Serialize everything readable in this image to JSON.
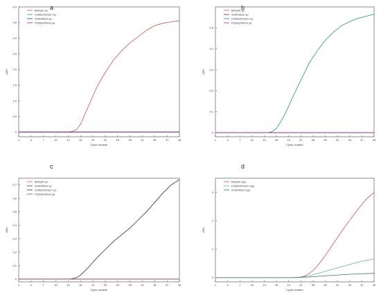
{
  "chart_data": [
    {
      "type": "line",
      "panel_label": "a",
      "xlabel": "Cycle number",
      "ylabel": "ΔRn",
      "x_ticks": [
        "1",
        "4",
        "7",
        "10",
        "13",
        "16",
        "19",
        "22",
        "25",
        "28",
        "31",
        "34",
        "37",
        "40"
      ],
      "y_ticks": [
        "0",
        "0.5",
        "1.0",
        "1.5",
        "2.0",
        "2.5",
        "3.0",
        "3.5",
        "4.0"
      ],
      "xlim": [
        1,
        40
      ],
      "ylim": [
        -0.15,
        4.0
      ],
      "legend_position": "top-left",
      "series": [
        {
          "name": "Botrytis sp.",
          "color": "#d9534f",
          "x": [
            1,
            4,
            7,
            10,
            13,
            14,
            15,
            16,
            17,
            18,
            19,
            20,
            22,
            24,
            26,
            28,
            30,
            32,
            34,
            36,
            38,
            40
          ],
          "y": [
            0,
            0,
            0,
            0,
            0,
            0.02,
            0.08,
            0.25,
            0.55,
            0.85,
            1.15,
            1.45,
            1.9,
            2.3,
            2.6,
            2.85,
            3.05,
            3.25,
            3.4,
            3.48,
            3.52,
            3.56
          ]
        },
        {
          "name": "Colletotrichum sp.",
          "color": "#1a9a6b",
          "x": [
            1,
            10,
            20,
            30,
            40
          ],
          "y": [
            0,
            0,
            0,
            0,
            0
          ]
        },
        {
          "name": "Verticillium sp.",
          "color": "#2a2a7a",
          "x": [
            1,
            10,
            20,
            30,
            40
          ],
          "y": [
            0,
            0,
            0,
            0,
            0
          ]
        },
        {
          "name": "Phytophthora sp.",
          "color": "#9b2d9b",
          "x": [
            1,
            10,
            20,
            30,
            40
          ],
          "y": [
            0,
            0,
            0,
            0,
            0
          ]
        }
      ]
    },
    {
      "type": "line",
      "panel_label": "b",
      "xlabel": "Cycle number",
      "ylabel": "ΔRn",
      "x_ticks": [
        "1",
        "4",
        "7",
        "10",
        "13",
        "16",
        "19",
        "22",
        "25",
        "28",
        "31",
        "34",
        "37",
        "40"
      ],
      "y_ticks": [
        "0",
        "0.1",
        "0.2",
        "0.3",
        "0.4",
        "0.5"
      ],
      "xlim": [
        1,
        40
      ],
      "ylim": [
        -0.02,
        0.6
      ],
      "legend_position": "top-left",
      "series": [
        {
          "name": "Botrytis sp.",
          "color": "#d9534f",
          "x": [
            1,
            10,
            20,
            30,
            40
          ],
          "y": [
            0,
            0,
            0,
            0,
            0
          ]
        },
        {
          "name": "Verticillium sp.",
          "color": "#2a2a7a",
          "x": [
            1,
            10,
            20,
            30,
            40
          ],
          "y": [
            0,
            0,
            0,
            0,
            0
          ]
        },
        {
          "name": "Colletotrichum sp.",
          "color": "#1a9a6b",
          "x": [
            1,
            10,
            14,
            15,
            16,
            17,
            18,
            19,
            20,
            21,
            22,
            24,
            26,
            28,
            30,
            32,
            34,
            36,
            38,
            40
          ],
          "y": [
            0,
            0,
            0,
            0.005,
            0.02,
            0.05,
            0.085,
            0.125,
            0.17,
            0.21,
            0.25,
            0.33,
            0.39,
            0.44,
            0.48,
            0.51,
            0.53,
            0.545,
            0.555,
            0.565
          ]
        },
        {
          "name": "Phytophthora sp.",
          "color": "#9b2d9b",
          "x": [
            1,
            10,
            20,
            30,
            40
          ],
          "y": [
            0,
            0,
            0,
            0,
            0
          ]
        }
      ]
    },
    {
      "type": "line",
      "panel_label": "c",
      "xlabel": "Cycle number",
      "ylabel": "ΔRn",
      "x_ticks": [
        "1",
        "4",
        "7",
        "10",
        "13",
        "16",
        "19",
        "22",
        "25",
        "28",
        "31",
        "34",
        "37",
        "40"
      ],
      "y_ticks": [
        "0",
        "0.1",
        "0.2",
        "0.3",
        "0.4",
        "0.5",
        "0.6",
        "0.7"
      ],
      "xlim": [
        1,
        40
      ],
      "ylim": [
        -0.02,
        0.75
      ],
      "legend_position": "top-left",
      "series": [
        {
          "name": "Botrytis sp.",
          "color": "#d9534f",
          "x": [
            1,
            10,
            20,
            30,
            40
          ],
          "y": [
            0,
            0,
            0,
            0,
            0
          ]
        },
        {
          "name": "Verticillium sp.",
          "color": "#2a2a7a",
          "x": [
            1,
            10,
            20,
            30,
            40
          ],
          "y": [
            0,
            0,
            0,
            0,
            0
          ]
        },
        {
          "name": "Colletotrichum sp.",
          "color": "#333333",
          "x": [
            1,
            10,
            13,
            14,
            15,
            16,
            17,
            18,
            20,
            22,
            24,
            26,
            28,
            30,
            32,
            34,
            36,
            38,
            40
          ],
          "y": [
            0,
            0,
            0,
            0.003,
            0.01,
            0.03,
            0.06,
            0.09,
            0.16,
            0.22,
            0.28,
            0.33,
            0.38,
            0.44,
            0.5,
            0.57,
            0.64,
            0.7,
            0.74
          ]
        },
        {
          "name": "Phytophthora sp.",
          "color": "#9b2d9b",
          "x": [
            1,
            10,
            20,
            30,
            40
          ],
          "y": [
            0,
            0,
            0,
            0,
            0
          ]
        }
      ]
    },
    {
      "type": "line",
      "panel_label": "d",
      "xlabel": "Cycle number",
      "ylabel": "ΔRn",
      "x_ticks": [
        "1",
        "4",
        "7",
        "10",
        "13",
        "16",
        "19",
        "22",
        "25",
        "28",
        "31",
        "34",
        "37",
        "40"
      ],
      "y_ticks": [
        "0",
        "1",
        "2",
        "3"
      ],
      "xlim": [
        1,
        40
      ],
      "ylim": [
        -0.15,
        3.5
      ],
      "legend_position": "top-left",
      "series": [
        {
          "name": "Botrytis spp.",
          "color": "#d9534f",
          "x": [
            1,
            10,
            20,
            22,
            23,
            24,
            25,
            26,
            27,
            28,
            29,
            30,
            32,
            34,
            36,
            38,
            40
          ],
          "y": [
            0,
            0,
            0,
            0.02,
            0.06,
            0.14,
            0.25,
            0.4,
            0.58,
            0.78,
            0.98,
            1.2,
            1.62,
            2.02,
            2.4,
            2.75,
            3.0
          ]
        },
        {
          "name": "Colletotrichum spp.",
          "color": "#5fb5a0",
          "x": [
            1,
            10,
            20,
            22,
            24,
            26,
            28,
            30,
            32,
            34,
            36,
            38,
            40
          ],
          "y": [
            0,
            0,
            0,
            0.01,
            0.06,
            0.14,
            0.22,
            0.3,
            0.38,
            0.46,
            0.54,
            0.6,
            0.66
          ]
        },
        {
          "name": "Verticillium spp.",
          "color": "#2f7a6a",
          "x": [
            1,
            10,
            20,
            24,
            28,
            32,
            36,
            40
          ],
          "y": [
            0,
            0,
            0,
            0.02,
            0.06,
            0.1,
            0.13,
            0.15
          ]
        }
      ]
    }
  ]
}
